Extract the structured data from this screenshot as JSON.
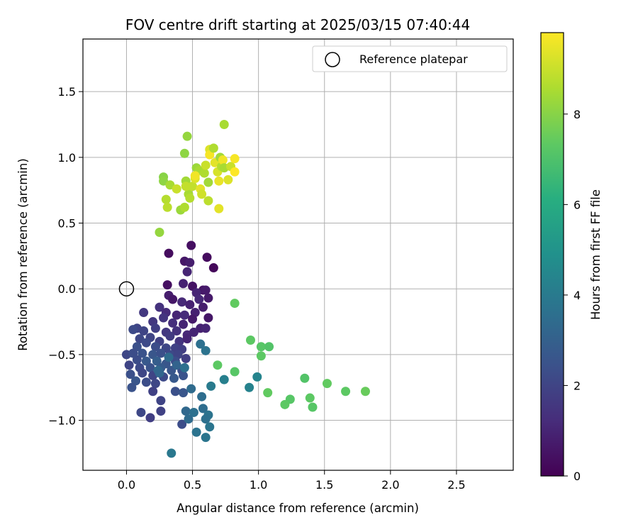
{
  "chart_data": {
    "type": "scatter",
    "title": "FOV centre drift starting at 2025/03/15 07:40:44",
    "xlabel": "Angular distance from reference (arcmin)",
    "ylabel": "Rotation from reference (arcmin)",
    "xlim": [
      -0.33,
      2.93
    ],
    "ylim": [
      -1.38,
      1.9
    ],
    "xticks": [
      0.0,
      0.5,
      1.0,
      1.5,
      2.0,
      2.5
    ],
    "xtick_labels": [
      "0.0",
      "0.5",
      "1.0",
      "1.5",
      "2.0",
      "2.5"
    ],
    "yticks": [
      -1.0,
      -0.5,
      0.0,
      0.5,
      1.0,
      1.5
    ],
    "ytick_labels": [
      "−1.0",
      "−0.5",
      "0.0",
      "0.5",
      "1.0",
      "1.5"
    ],
    "grid": true,
    "legend": {
      "position": "top-right",
      "entries": [
        "Reference platepar"
      ]
    },
    "reference_point": {
      "x": 0.0,
      "y": 0.0,
      "label": "Reference platepar"
    },
    "colorbar": {
      "label": "Hours from first FF file",
      "colormap": "viridis",
      "range": [
        0,
        9.8
      ],
      "ticks": [
        0,
        2,
        4,
        6,
        8
      ],
      "tick_labels": [
        "0",
        "2",
        "4",
        "6",
        "8"
      ]
    },
    "points": [
      {
        "x": 0.32,
        "y": 0.27,
        "t": 0.3
      },
      {
        "x": 0.49,
        "y": 0.33,
        "t": 0.4
      },
      {
        "x": 0.61,
        "y": 0.24,
        "t": 0.3
      },
      {
        "x": 0.66,
        "y": 0.16,
        "t": 0.2
      },
      {
        "x": 0.44,
        "y": 0.21,
        "t": 0.6
      },
      {
        "x": 0.48,
        "y": 0.2,
        "t": 0.8
      },
      {
        "x": 0.46,
        "y": 0.13,
        "t": 1.0
      },
      {
        "x": 0.31,
        "y": 0.03,
        "t": 0.4
      },
      {
        "x": 0.43,
        "y": 0.04,
        "t": 0.9
      },
      {
        "x": 0.5,
        "y": 0.02,
        "t": 0.5
      },
      {
        "x": 0.58,
        "y": -0.01,
        "t": 0.5
      },
      {
        "x": 0.53,
        "y": -0.03,
        "t": 1.0
      },
      {
        "x": 0.6,
        "y": -0.01,
        "t": 0.7
      },
      {
        "x": 0.32,
        "y": -0.05,
        "t": 0.8
      },
      {
        "x": 0.35,
        "y": -0.08,
        "t": 0.6
      },
      {
        "x": 0.42,
        "y": -0.1,
        "t": 1.1
      },
      {
        "x": 0.48,
        "y": -0.12,
        "t": 0.9
      },
      {
        "x": 0.55,
        "y": -0.08,
        "t": 1.1
      },
      {
        "x": 0.62,
        "y": -0.07,
        "t": 0.7
      },
      {
        "x": 0.25,
        "y": -0.14,
        "t": 1.4
      },
      {
        "x": 0.3,
        "y": -0.18,
        "t": 1.2
      },
      {
        "x": 0.38,
        "y": -0.2,
        "t": 1.0
      },
      {
        "x": 0.44,
        "y": -0.2,
        "t": 1.2
      },
      {
        "x": 0.52,
        "y": -0.18,
        "t": 0.9
      },
      {
        "x": 0.58,
        "y": -0.14,
        "t": 0.8
      },
      {
        "x": 0.62,
        "y": -0.22,
        "t": 0.6
      },
      {
        "x": 0.13,
        "y": -0.18,
        "t": 1.6
      },
      {
        "x": 0.2,
        "y": -0.25,
        "t": 1.6
      },
      {
        "x": 0.28,
        "y": -0.22,
        "t": 1.5
      },
      {
        "x": 0.35,
        "y": -0.26,
        "t": 1.3
      },
      {
        "x": 0.43,
        "y": -0.27,
        "t": 1.0
      },
      {
        "x": 0.5,
        "y": -0.23,
        "t": 0.7
      },
      {
        "x": 0.56,
        "y": -0.3,
        "t": 0.9
      },
      {
        "x": 0.6,
        "y": -0.3,
        "t": 1.0
      },
      {
        "x": 0.08,
        "y": -0.3,
        "t": 2.0
      },
      {
        "x": 0.05,
        "y": -0.31,
        "t": 2.2
      },
      {
        "x": 0.13,
        "y": -0.32,
        "t": 2.0
      },
      {
        "x": 0.22,
        "y": -0.3,
        "t": 1.8
      },
      {
        "x": 0.3,
        "y": -0.33,
        "t": 1.6
      },
      {
        "x": 0.38,
        "y": -0.32,
        "t": 1.4
      },
      {
        "x": 0.46,
        "y": -0.35,
        "t": 1.1
      },
      {
        "x": 0.51,
        "y": -0.33,
        "t": 1.0
      },
      {
        "x": 0.1,
        "y": -0.38,
        "t": 2.1
      },
      {
        "x": 0.18,
        "y": -0.37,
        "t": 2.0
      },
      {
        "x": 0.25,
        "y": -0.4,
        "t": 1.9
      },
      {
        "x": 0.33,
        "y": -0.36,
        "t": 1.7
      },
      {
        "x": 0.4,
        "y": -0.4,
        "t": 1.5
      },
      {
        "x": 0.46,
        "y": -0.38,
        "t": 1.0
      },
      {
        "x": 0.15,
        "y": -0.41,
        "t": 2.2
      },
      {
        "x": 0.22,
        "y": -0.44,
        "t": 2.3
      },
      {
        "x": 0.3,
        "y": -0.45,
        "t": 2.1
      },
      {
        "x": 0.37,
        "y": -0.45,
        "t": 1.9
      },
      {
        "x": 0.42,
        "y": -0.46,
        "t": 1.8
      },
      {
        "x": 0.08,
        "y": -0.44,
        "t": 2.4
      },
      {
        "x": 0.0,
        "y": -0.5,
        "t": 2.1
      },
      {
        "x": 0.05,
        "y": -0.49,
        "t": 2.3
      },
      {
        "x": 0.12,
        "y": -0.49,
        "t": 2.5
      },
      {
        "x": 0.2,
        "y": -0.5,
        "t": 2.6
      },
      {
        "x": 0.26,
        "y": -0.49,
        "t": 2.4
      },
      {
        "x": 0.33,
        "y": -0.5,
        "t": 2.2
      },
      {
        "x": 0.39,
        "y": -0.5,
        "t": 2.0
      },
      {
        "x": 0.45,
        "y": -0.53,
        "t": 1.8
      },
      {
        "x": 0.08,
        "y": -0.54,
        "t": 2.3
      },
      {
        "x": 0.15,
        "y": -0.55,
        "t": 2.7
      },
      {
        "x": 0.23,
        "y": -0.55,
        "t": 2.9
      },
      {
        "x": 0.3,
        "y": -0.57,
        "t": 2.6
      },
      {
        "x": 0.37,
        "y": -0.55,
        "t": 2.3
      },
      {
        "x": 0.02,
        "y": -0.58,
        "t": 2.0
      },
      {
        "x": 0.1,
        "y": -0.6,
        "t": 2.2
      },
      {
        "x": 0.18,
        "y": -0.6,
        "t": 2.5
      },
      {
        "x": 0.26,
        "y": -0.6,
        "t": 2.8
      },
      {
        "x": 0.34,
        "y": -0.62,
        "t": 2.6
      },
      {
        "x": 0.42,
        "y": -0.62,
        "t": 2.4
      },
      {
        "x": 0.03,
        "y": -0.65,
        "t": 2.4
      },
      {
        "x": 0.12,
        "y": -0.64,
        "t": 2.1
      },
      {
        "x": 0.2,
        "y": -0.66,
        "t": 2.0
      },
      {
        "x": 0.28,
        "y": -0.67,
        "t": 2.2
      },
      {
        "x": 0.36,
        "y": -0.68,
        "t": 2.7
      },
      {
        "x": 0.43,
        "y": -0.66,
        "t": 2.5
      },
      {
        "x": 0.07,
        "y": -0.7,
        "t": 2.6
      },
      {
        "x": 0.15,
        "y": -0.71,
        "t": 2.3
      },
      {
        "x": 0.22,
        "y": -0.72,
        "t": 2.1
      },
      {
        "x": 0.04,
        "y": -0.75,
        "t": 2.5
      },
      {
        "x": 0.2,
        "y": -0.78,
        "t": 1.9
      },
      {
        "x": 0.37,
        "y": -0.78,
        "t": 2.4
      },
      {
        "x": 0.43,
        "y": -0.79,
        "t": 2.6
      },
      {
        "x": 0.26,
        "y": -0.85,
        "t": 2.0
      },
      {
        "x": 0.11,
        "y": -0.94,
        "t": 2.1
      },
      {
        "x": 0.26,
        "y": -0.93,
        "t": 1.9
      },
      {
        "x": 0.18,
        "y": -0.98,
        "t": 1.8
      },
      {
        "x": 0.42,
        "y": -1.03,
        "t": 2.3
      },
      {
        "x": 0.24,
        "y": -0.62,
        "t": 3.3
      },
      {
        "x": 0.32,
        "y": -0.52,
        "t": 3.4
      },
      {
        "x": 0.38,
        "y": -0.58,
        "t": 3.1
      },
      {
        "x": 0.44,
        "y": -0.6,
        "t": 3.6
      },
      {
        "x": 0.25,
        "y": -0.64,
        "t": 3.2
      },
      {
        "x": 0.56,
        "y": -0.42,
        "t": 3.6
      },
      {
        "x": 0.6,
        "y": -0.47,
        "t": 3.7
      },
      {
        "x": 0.49,
        "y": -0.76,
        "t": 3.4
      },
      {
        "x": 0.57,
        "y": -0.82,
        "t": 3.5
      },
      {
        "x": 0.45,
        "y": -0.93,
        "t": 3.3
      },
      {
        "x": 0.51,
        "y": -0.94,
        "t": 3.6
      },
      {
        "x": 0.58,
        "y": -0.91,
        "t": 3.5
      },
      {
        "x": 0.62,
        "y": -0.96,
        "t": 3.7
      },
      {
        "x": 0.47,
        "y": -0.99,
        "t": 3.4
      },
      {
        "x": 0.6,
        "y": -0.99,
        "t": 3.6
      },
      {
        "x": 0.53,
        "y": -1.09,
        "t": 3.7
      },
      {
        "x": 0.63,
        "y": -1.05,
        "t": 3.8
      },
      {
        "x": 0.6,
        "y": -1.13,
        "t": 3.8
      },
      {
        "x": 0.34,
        "y": -1.25,
        "t": 3.9
      },
      {
        "x": 0.64,
        "y": -0.74,
        "t": 4.0
      },
      {
        "x": 0.74,
        "y": -0.69,
        "t": 4.2
      },
      {
        "x": 0.93,
        "y": -0.75,
        "t": 4.3
      },
      {
        "x": 0.99,
        "y": -0.67,
        "t": 4.4
      },
      {
        "x": 0.69,
        "y": -0.58,
        "t": 7.3
      },
      {
        "x": 0.82,
        "y": -0.63,
        "t": 7.2
      },
      {
        "x": 0.82,
        "y": -0.11,
        "t": 7.4
      },
      {
        "x": 0.94,
        "y": -0.39,
        "t": 7.3
      },
      {
        "x": 1.02,
        "y": -0.44,
        "t": 7.2
      },
      {
        "x": 1.08,
        "y": -0.44,
        "t": 7.1
      },
      {
        "x": 1.02,
        "y": -0.51,
        "t": 7.3
      },
      {
        "x": 1.07,
        "y": -0.79,
        "t": 7.4
      },
      {
        "x": 1.24,
        "y": -0.84,
        "t": 7.2
      },
      {
        "x": 1.2,
        "y": -0.88,
        "t": 7.3
      },
      {
        "x": 1.35,
        "y": -0.68,
        "t": 7.1
      },
      {
        "x": 1.39,
        "y": -0.83,
        "t": 7.3
      },
      {
        "x": 1.41,
        "y": -0.9,
        "t": 7.2
      },
      {
        "x": 1.52,
        "y": -0.72,
        "t": 7.4
      },
      {
        "x": 1.66,
        "y": -0.78,
        "t": 7.3
      },
      {
        "x": 1.81,
        "y": -0.78,
        "t": 7.5
      },
      {
        "x": 0.25,
        "y": 0.43,
        "t": 8.2
      },
      {
        "x": 0.28,
        "y": 0.85,
        "t": 8.0
      },
      {
        "x": 0.28,
        "y": 0.82,
        "t": 8.1
      },
      {
        "x": 0.33,
        "y": 0.79,
        "t": 8.5
      },
      {
        "x": 0.3,
        "y": 0.68,
        "t": 8.7
      },
      {
        "x": 0.31,
        "y": 0.62,
        "t": 8.8
      },
      {
        "x": 0.38,
        "y": 0.76,
        "t": 9.0
      },
      {
        "x": 0.41,
        "y": 0.6,
        "t": 8.3
      },
      {
        "x": 0.44,
        "y": 0.62,
        "t": 8.6
      },
      {
        "x": 0.45,
        "y": 0.82,
        "t": 8.4
      },
      {
        "x": 0.47,
        "y": 0.72,
        "t": 8.5
      },
      {
        "x": 0.48,
        "y": 0.69,
        "t": 8.7
      },
      {
        "x": 0.5,
        "y": 0.78,
        "t": 8.9
      },
      {
        "x": 0.52,
        "y": 0.84,
        "t": 9.3
      },
      {
        "x": 0.53,
        "y": 0.92,
        "t": 8.3
      },
      {
        "x": 0.55,
        "y": 0.9,
        "t": 8.5
      },
      {
        "x": 0.56,
        "y": 0.76,
        "t": 9.4
      },
      {
        "x": 0.57,
        "y": 0.72,
        "t": 9.1
      },
      {
        "x": 0.59,
        "y": 0.88,
        "t": 8.6
      },
      {
        "x": 0.6,
        "y": 0.94,
        "t": 9.0
      },
      {
        "x": 0.62,
        "y": 0.81,
        "t": 8.4
      },
      {
        "x": 0.62,
        "y": 0.67,
        "t": 8.8
      },
      {
        "x": 0.63,
        "y": 1.06,
        "t": 9.3
      },
      {
        "x": 0.63,
        "y": 1.02,
        "t": 9.7
      },
      {
        "x": 0.66,
        "y": 1.07,
        "t": 8.6
      },
      {
        "x": 0.67,
        "y": 0.96,
        "t": 9.4
      },
      {
        "x": 0.69,
        "y": 0.89,
        "t": 9.2
      },
      {
        "x": 0.7,
        "y": 0.82,
        "t": 9.5
      },
      {
        "x": 0.71,
        "y": 1.0,
        "t": 8.4
      },
      {
        "x": 0.72,
        "y": 0.93,
        "t": 8.7
      },
      {
        "x": 0.73,
        "y": 0.98,
        "t": 9.6
      },
      {
        "x": 0.74,
        "y": 0.92,
        "t": 8.5
      },
      {
        "x": 0.74,
        "y": 1.25,
        "t": 8.5
      },
      {
        "x": 0.77,
        "y": 0.83,
        "t": 9.3
      },
      {
        "x": 0.79,
        "y": 0.93,
        "t": 9.0
      },
      {
        "x": 0.82,
        "y": 0.89,
        "t": 9.8
      },
      {
        "x": 0.82,
        "y": 0.99,
        "t": 9.7
      },
      {
        "x": 0.7,
        "y": 0.61,
        "t": 9.4
      },
      {
        "x": 0.46,
        "y": 1.16,
        "t": 8.2
      },
      {
        "x": 0.44,
        "y": 1.03,
        "t": 8.1
      },
      {
        "x": 0.52,
        "y": 0.86,
        "t": 9.6
      },
      {
        "x": 0.45,
        "y": 0.78,
        "t": 8.9
      }
    ]
  }
}
